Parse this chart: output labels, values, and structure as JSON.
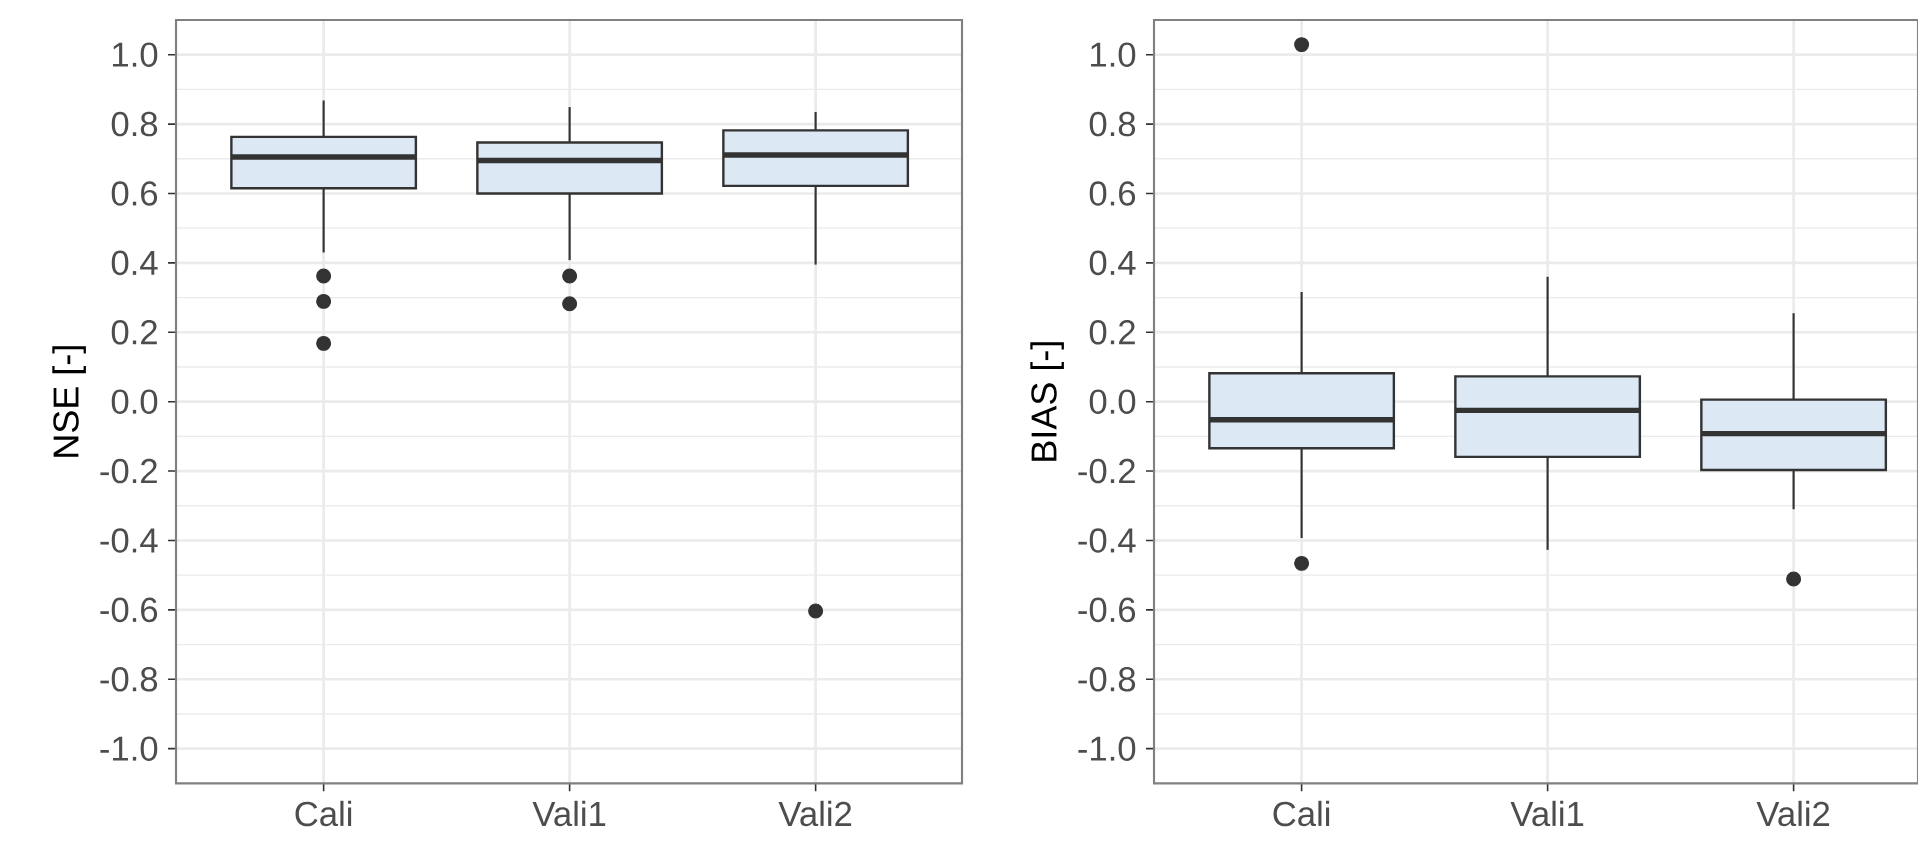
{
  "chart_data": [
    {
      "type": "box",
      "ylabel": "NSE [-]",
      "categories": [
        "Cali",
        "Vali1",
        "Vali2"
      ],
      "color": "#dce9f5",
      "grid": true,
      "boxes": [
        {
          "low": 0.43,
          "q1": 0.615,
          "median": 0.705,
          "q3": 0.763,
          "high": 0.868,
          "outliers": [
            0.362,
            0.289,
            0.168
          ]
        },
        {
          "low": 0.408,
          "q1": 0.6,
          "median": 0.695,
          "q3": 0.747,
          "high": 0.849,
          "outliers": [
            0.362,
            0.282
          ]
        },
        {
          "low": 0.395,
          "q1": 0.622,
          "median": 0.711,
          "q3": 0.782,
          "high": 0.835,
          "outliers": [
            -0.603
          ]
        }
      ],
      "ylim": [
        -1.1,
        1.1
      ],
      "yticks": [
        {
          "value": -1.0,
          "label": "-1.0"
        },
        {
          "value": -0.8,
          "label": "-0.8"
        },
        {
          "value": -0.6,
          "label": "-0.6"
        },
        {
          "value": -0.4,
          "label": "-0.4"
        },
        {
          "value": -0.2,
          "label": "-0.2"
        },
        {
          "value": 0.0,
          "label": "0.0"
        },
        {
          "value": 0.2,
          "label": "0.2"
        },
        {
          "value": 0.4,
          "label": "0.4"
        },
        {
          "value": 0.6,
          "label": "0.6"
        },
        {
          "value": 0.8,
          "label": "0.8"
        },
        {
          "value": 1.0,
          "label": "1.0"
        }
      ]
    },
    {
      "type": "box",
      "ylabel": "BIAS [-]",
      "categories": [
        "Cali",
        "Vali1",
        "Vali2"
      ],
      "color": "#dce9f5",
      "grid": true,
      "boxes": [
        {
          "low": -0.393,
          "q1": -0.134,
          "median": -0.052,
          "q3": 0.082,
          "high": 0.316,
          "outliers": [
            1.029,
            -0.466
          ]
        },
        {
          "low": -0.427,
          "q1": -0.159,
          "median": -0.025,
          "q3": 0.073,
          "high": 0.36
        },
        {
          "low": -0.31,
          "q1": -0.197,
          "median": -0.092,
          "q3": 0.006,
          "high": 0.255,
          "outliers": [
            -0.511
          ]
        }
      ],
      "ylim": [
        -1.1,
        1.1
      ],
      "yticks": [
        {
          "value": -1.0,
          "label": "-1.0"
        },
        {
          "value": -0.8,
          "label": "-0.8"
        },
        {
          "value": -0.6,
          "label": "-0.6"
        },
        {
          "value": -0.4,
          "label": "-0.4"
        },
        {
          "value": -0.2,
          "label": "-0.2"
        },
        {
          "value": 0.0,
          "label": "0.0"
        },
        {
          "value": 0.2,
          "label": "0.2"
        },
        {
          "value": 0.4,
          "label": "0.4"
        },
        {
          "value": 0.6,
          "label": "0.6"
        },
        {
          "value": 0.8,
          "label": "0.8"
        },
        {
          "value": 1.0,
          "label": "1.0"
        }
      ]
    }
  ]
}
